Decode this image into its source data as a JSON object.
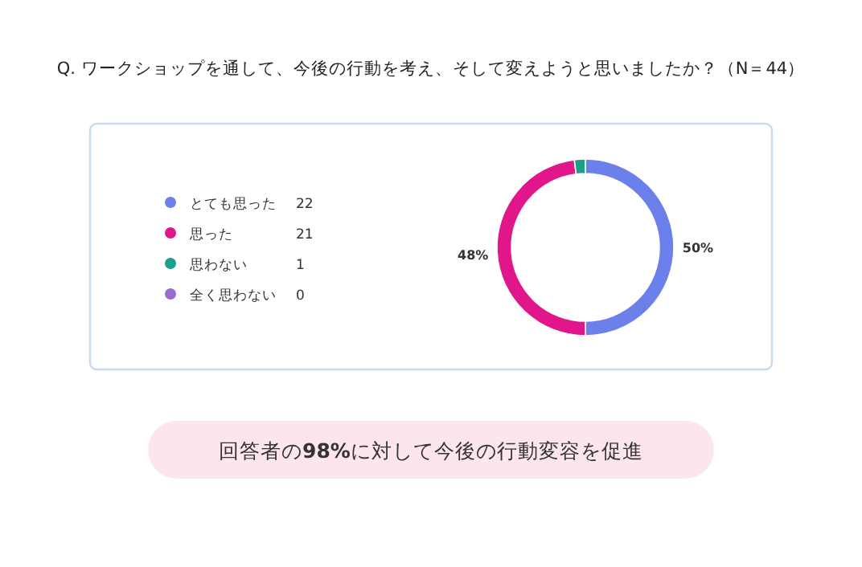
{
  "chart_data": {
    "type": "donut",
    "title": "Q. ワークショップを通して、今後の行動を考え、そして変えようと思いましたか？（N＝44）",
    "categories": [
      "とても思った",
      "思った",
      "思わない",
      "全く思わない"
    ],
    "values": [
      50,
      48,
      2,
      0
    ],
    "colors": [
      "#6b80eb",
      "#e0168a",
      "#1b9e8c",
      "#9a6ccf"
    ],
    "value_labels": [
      "50%",
      "48%",
      null,
      null
    ],
    "legend": "left",
    "annotations": [
      {
        "text": "22",
        "x": "とても思った"
      },
      {
        "text": "21",
        "x": "思った"
      },
      {
        "text": "1",
        "x": "思わない"
      },
      {
        "text": "0",
        "x": "全く思わない"
      },
      "回答者の**98%**に対して今後の行動変容を促進"
    ]
  }
}
